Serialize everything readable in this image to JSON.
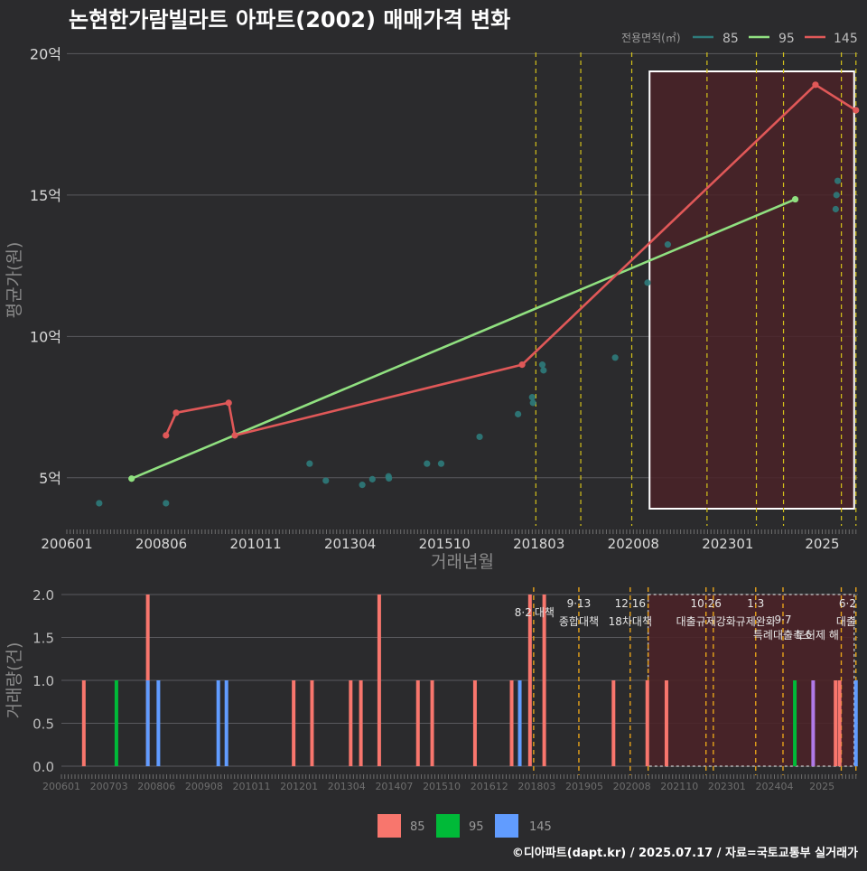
{
  "title": "논현한가람빌라트 아파트(2002) 매매가격 변화",
  "footer": "©디아파트(dapt.kr) / 2025.07.17 / 자료=국토교통부 실거래가",
  "colors": {
    "background": "#2b2b2d",
    "grid": "#5a5a5e",
    "policy_line": "#d4c21a",
    "area85_price": "#2e7b7b",
    "area95_price": "#90e080",
    "area145_price": "#e05858",
    "bar85": "#f8766d",
    "bar95": "#00ba38",
    "bar145": "#619cff",
    "bar_other": "#b07ae8",
    "highlight_border": "#ffffff",
    "highlight_fill": "#4a2228"
  },
  "chart_data": [
    {
      "type": "line",
      "title": "논현한가람빌라트 아파트(2002) 매매가격 변화",
      "xlabel": "거래년월",
      "ylabel": "평균가(원)",
      "x_ticks": [
        "200601",
        "200806",
        "201011",
        "201304",
        "201510",
        "201803",
        "202008",
        "202301",
        "2025"
      ],
      "y_ticks": [
        "5억",
        "10억",
        "15억",
        "20억"
      ],
      "y_tick_values": [
        5,
        10,
        15,
        20
      ],
      "ylim": [
        3.3,
        20.3
      ],
      "xlim": [
        2006.0,
        2025.55
      ],
      "grid": true,
      "legend": {
        "title": "전용면적(㎡)",
        "position": "top-right",
        "entries": [
          "85",
          "95",
          "145"
        ]
      },
      "policy_dates": [
        2017.59,
        2018.7,
        2019.96,
        2021.82,
        2023.04,
        2023.71,
        2025.14,
        2025.5
      ],
      "highlight_range": [
        2020.4,
        2025.5
      ],
      "series": [
        {
          "name": "85",
          "style": "points",
          "points": [
            [
              2006.8,
              4.1
            ],
            [
              2008.45,
              4.1
            ],
            [
              2012.0,
              5.5
            ],
            [
              2012.4,
              4.9
            ],
            [
              2013.3,
              4.75
            ],
            [
              2013.55,
              4.95
            ],
            [
              2013.95,
              5.05
            ],
            [
              2013.96,
              4.98
            ],
            [
              2014.9,
              5.5
            ],
            [
              2015.25,
              5.5
            ],
            [
              2016.2,
              6.45
            ],
            [
              2017.15,
              7.25
            ],
            [
              2017.5,
              7.85
            ],
            [
              2017.52,
              7.65
            ],
            [
              2017.75,
              9.0
            ],
            [
              2017.78,
              8.8
            ],
            [
              2019.55,
              9.25
            ],
            [
              2020.35,
              11.9
            ],
            [
              2020.85,
              13.25
            ],
            [
              2025.0,
              14.5
            ],
            [
              2025.02,
              15.0
            ],
            [
              2025.05,
              15.5
            ]
          ]
        },
        {
          "name": "95",
          "style": "line",
          "points": [
            [
              2007.6,
              4.97
            ],
            [
              2024.0,
              14.85
            ]
          ]
        },
        {
          "name": "145",
          "style": "line",
          "points": [
            [
              2008.45,
              6.5
            ],
            [
              2008.7,
              7.3
            ],
            [
              2010.0,
              7.65
            ],
            [
              2010.15,
              6.5
            ],
            [
              2017.25,
              9.0
            ],
            [
              2024.5,
              18.9
            ],
            [
              2025.5,
              18.0
            ]
          ]
        }
      ]
    },
    {
      "type": "bar",
      "ylabel": "거래량(건)",
      "y_ticks": [
        "0.0",
        "0.5",
        "1.0",
        "1.5",
        "2.0"
      ],
      "y_tick_values": [
        0,
        0.5,
        1.0,
        1.5,
        2.0
      ],
      "ylim": [
        0,
        2
      ],
      "xlim": [
        2006.0,
        2025.55
      ],
      "x_ticks": [
        "200601",
        "200703",
        "200806",
        "200908",
        "201011",
        "201201",
        "201304",
        "201407",
        "201510",
        "201612",
        "201803",
        "201905",
        "202008",
        "202110",
        "202301",
        "202404",
        "2025"
      ],
      "legend": {
        "position": "bottom",
        "entries": [
          "85",
          "95",
          "145"
        ]
      },
      "policy_dates": [
        2017.59,
        2018.7,
        2019.96,
        2020.4,
        2021.82,
        2022.0,
        2023.04,
        2023.71,
        2025.14,
        2025.5
      ],
      "highlight_range": [
        2020.4,
        2025.5
      ],
      "annotations": [
        {
          "x": 2017.59,
          "date": "8·2",
          "label": "대책",
          "row": "single"
        },
        {
          "x": 2018.7,
          "date": "9·13",
          "label": "종합대책",
          "row": "double"
        },
        {
          "x": 2019.96,
          "date": "12·16",
          "label": "18차대책",
          "row": "double"
        },
        {
          "x": 2021.82,
          "date": "10·26",
          "label": "대출규제강화",
          "row": "double"
        },
        {
          "x": 2023.04,
          "date": "1·3",
          "label": "규제완화",
          "row": "double"
        },
        {
          "x": 2023.71,
          "date": "9·7",
          "label": "특례대출축소",
          "row": "lower"
        },
        {
          "x": 2024.55,
          "date": "",
          "label": "토허제 해",
          "row": "lower"
        },
        {
          "x": 2025.5,
          "date": "6·2",
          "label": "대출",
          "row": "double"
        }
      ],
      "bars": [
        {
          "x": 2006.55,
          "value": 1,
          "series": "85"
        },
        {
          "x": 2007.35,
          "value": 1,
          "series": "95"
        },
        {
          "x": 2008.12,
          "value": 2,
          "series": "85"
        },
        {
          "x": 2008.12,
          "value": 1,
          "series": "145"
        },
        {
          "x": 2008.38,
          "value": 1,
          "series": "145"
        },
        {
          "x": 2009.85,
          "value": 1,
          "series": "145"
        },
        {
          "x": 2010.05,
          "value": 1,
          "series": "145"
        },
        {
          "x": 2011.7,
          "value": 1,
          "series": "85"
        },
        {
          "x": 2012.15,
          "value": 1,
          "series": "85"
        },
        {
          "x": 2013.1,
          "value": 1,
          "series": "85"
        },
        {
          "x": 2013.35,
          "value": 1,
          "series": "85"
        },
        {
          "x": 2013.8,
          "value": 2,
          "series": "85"
        },
        {
          "x": 2014.75,
          "value": 1,
          "series": "85"
        },
        {
          "x": 2015.1,
          "value": 1,
          "series": "85"
        },
        {
          "x": 2016.15,
          "value": 1,
          "series": "85"
        },
        {
          "x": 2017.05,
          "value": 1,
          "series": "85"
        },
        {
          "x": 2017.25,
          "value": 1,
          "series": "145"
        },
        {
          "x": 2017.5,
          "value": 2,
          "series": "85"
        },
        {
          "x": 2017.85,
          "value": 2,
          "series": "85"
        },
        {
          "x": 2019.55,
          "value": 1,
          "series": "85"
        },
        {
          "x": 2020.38,
          "value": 1,
          "series": "85"
        },
        {
          "x": 2020.85,
          "value": 1,
          "series": "85"
        },
        {
          "x": 2024.0,
          "value": 1,
          "series": "95"
        },
        {
          "x": 2024.45,
          "value": 1,
          "series": "other"
        },
        {
          "x": 2025.0,
          "value": 1,
          "series": "85"
        },
        {
          "x": 2025.1,
          "value": 1,
          "series": "85"
        },
        {
          "x": 2025.5,
          "value": 1,
          "series": "145"
        }
      ]
    }
  ]
}
